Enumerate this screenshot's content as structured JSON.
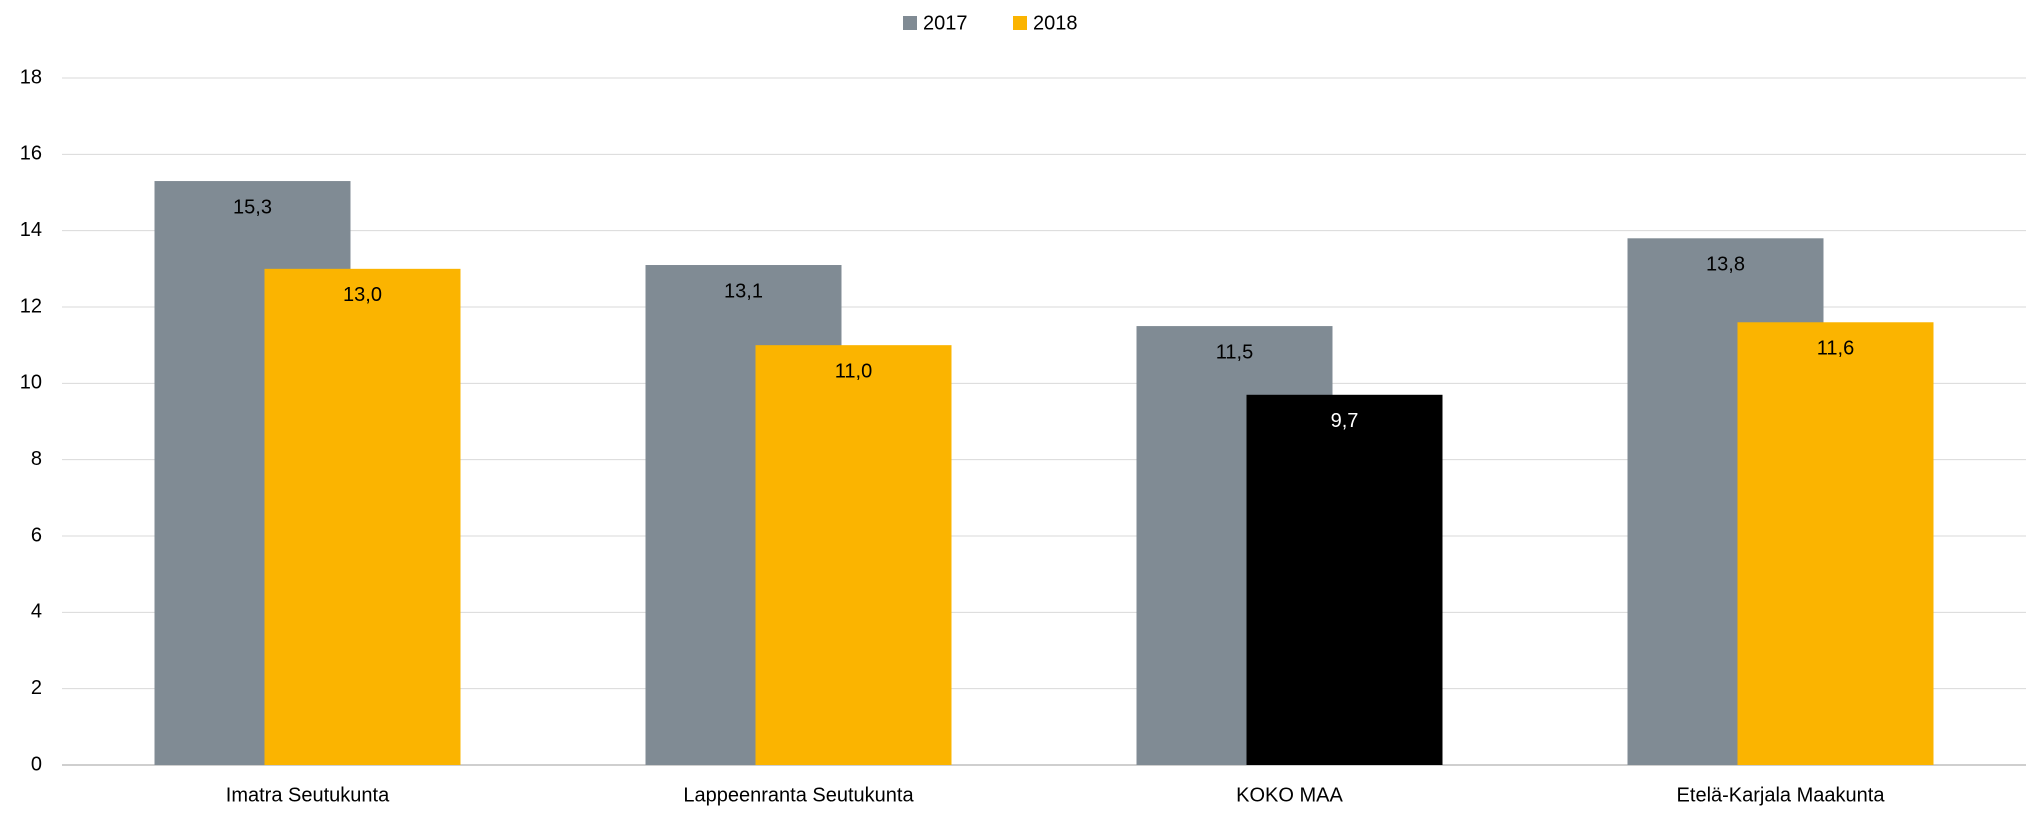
{
  "chart_data": {
    "type": "bar",
    "categories": [
      "Imatra Seutukunta",
      "Lappeenranta Seutukunta",
      "KOKO MAA",
      "Etelä-Karjala Maakunta"
    ],
    "series": [
      {
        "name": "2017",
        "color": "#808b94",
        "values": [
          15.3,
          13.1,
          11.5,
          13.8
        ],
        "value_labels": [
          "15,3",
          "13,1",
          "11,5",
          "13,8"
        ]
      },
      {
        "name": "2018",
        "color": "#fbb400",
        "colors": [
          "#fbb400",
          "#fbb400",
          "#000000",
          "#fbb400"
        ],
        "values": [
          13.0,
          11.0,
          9.7,
          11.6
        ],
        "value_labels": [
          "13,0",
          "11,0",
          "9,7",
          "11,6"
        ]
      }
    ],
    "ylim": [
      0,
      18
    ],
    "yticks": [
      0,
      2,
      4,
      6,
      8,
      10,
      12,
      14,
      16,
      18
    ],
    "grid": true,
    "legend": "top"
  }
}
